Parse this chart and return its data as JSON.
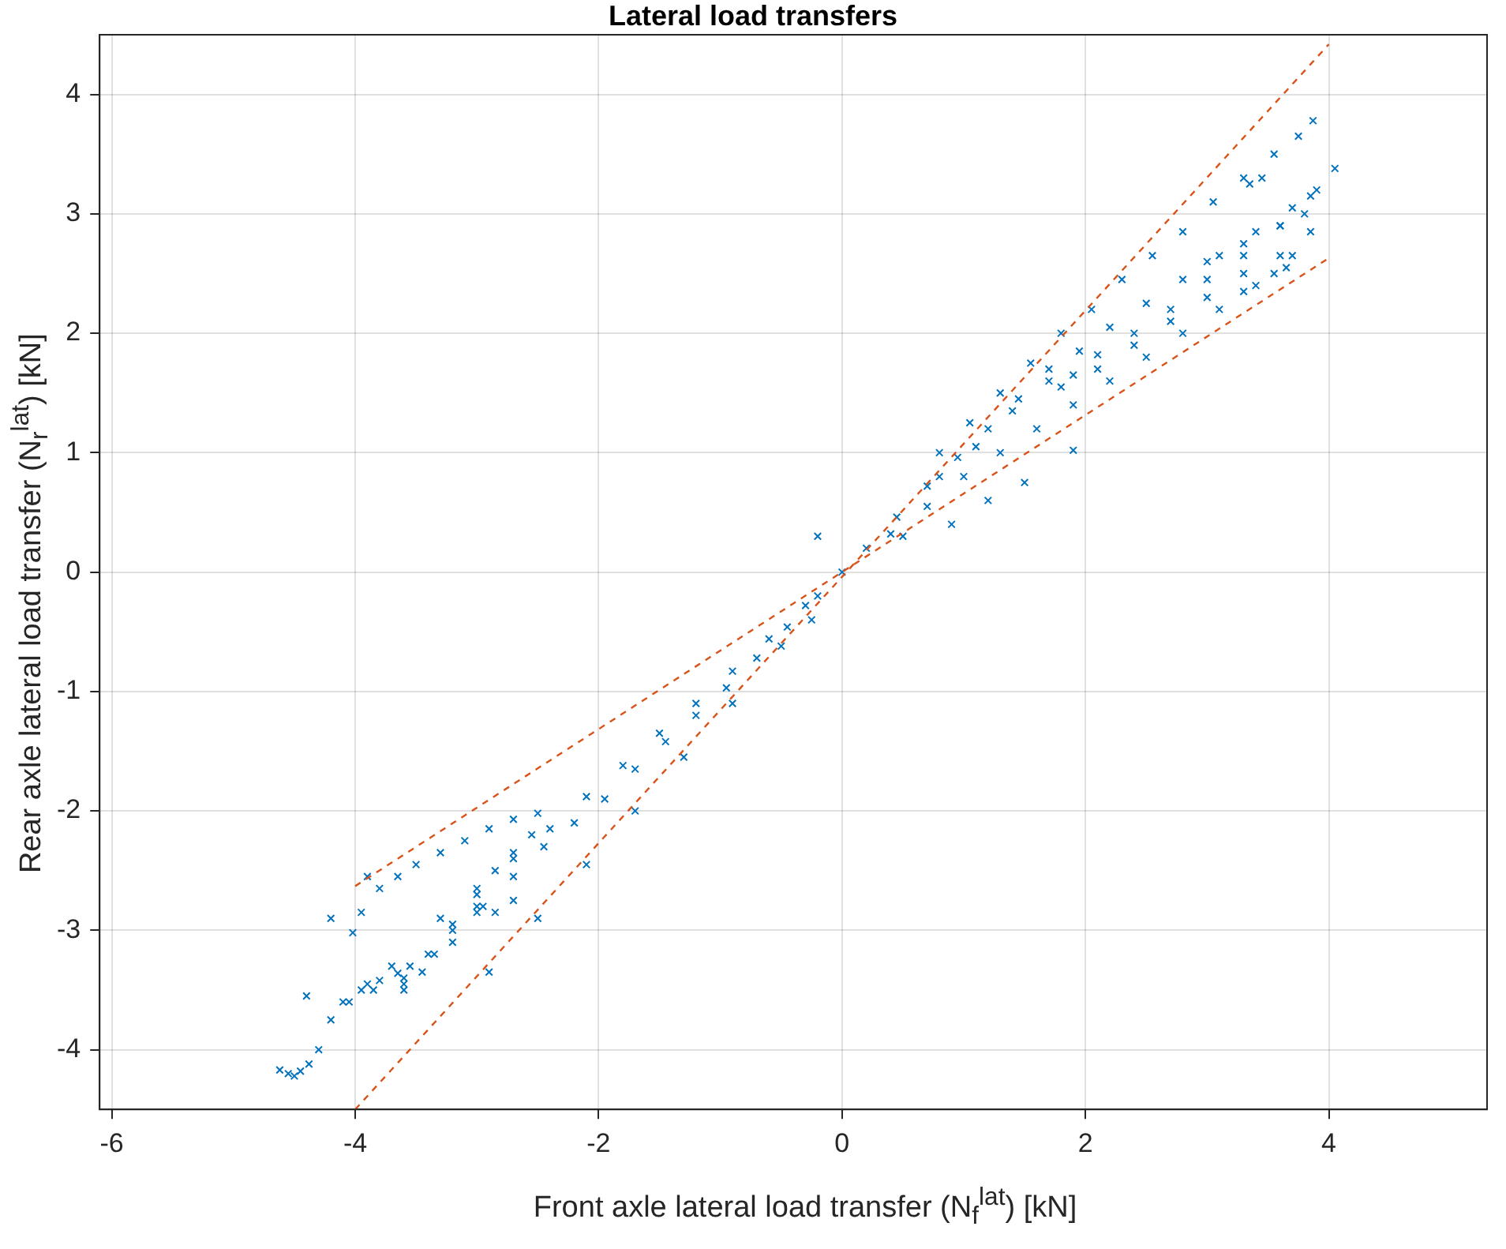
{
  "chart_data": {
    "type": "scatter",
    "title": "Lateral load transfers",
    "xlabel": "Front axle lateral load transfer (N$_{f}$$^{lat}$) [kN]",
    "ylabel": "Rear axle lateral load transfer (N$_{r}$$^{lat}$) [kN]",
    "xlim": [
      -6.1,
      5.3
    ],
    "ylim": [
      -4.5,
      4.5
    ],
    "xticks": [
      -6,
      -4,
      -2,
      0,
      2,
      4
    ],
    "yticks": [
      -4,
      -3,
      -2,
      -1,
      0,
      1,
      2,
      3,
      4
    ],
    "grid": true,
    "legend": false,
    "series": [
      {
        "color": "#0072bd",
        "marker": "cross",
        "x": [
          -4.62,
          -4.55,
          -4.5,
          -4.45,
          -4.38,
          -4.3,
          -4.2,
          -4.1,
          -3.95,
          -3.8,
          -3.65,
          -3.55,
          -3.7,
          -3.9,
          -4.05,
          -3.85,
          -3.6,
          -3.4,
          -3.2,
          -3.0,
          -3.35,
          -3.6,
          -4.02,
          -3.95,
          -3.8,
          -3.65,
          -3.5,
          -3.3,
          -3.1,
          -2.9,
          -2.7,
          -2.5,
          -2.55,
          -2.7,
          -2.85,
          -3.0,
          -3.0,
          -2.85,
          -2.7,
          -3.2,
          -3.6,
          -3.45,
          -3.2,
          -2.95,
          -2.7,
          -2.45,
          -2.2,
          -1.95,
          -1.7,
          -1.45,
          -1.2,
          -0.95,
          -0.7,
          -0.45,
          -0.2,
          0.0,
          0.2,
          0.45,
          0.7,
          0.95,
          1.2,
          1.45,
          1.7,
          -3.3,
          -3.0,
          -2.7,
          -2.4,
          -2.1,
          -1.8,
          -1.5,
          -1.2,
          -0.9,
          -0.6,
          -0.3,
          -2.9,
          -2.5,
          -2.1,
          -1.7,
          -1.3,
          -0.9,
          -0.5,
          -4.4,
          -4.2,
          -3.9,
          -0.2,
          -0.25,
          1.9,
          2.1,
          2.4,
          2.7,
          3.0,
          3.3,
          3.6,
          3.85,
          4.05,
          3.9,
          3.7,
          3.4,
          3.1,
          2.8,
          2.5,
          2.2,
          1.95,
          1.7,
          1.4,
          1.1,
          0.8,
          3.0,
          3.3,
          3.6,
          3.8,
          3.85,
          3.6,
          3.3,
          3.0,
          2.7,
          2.4,
          2.1,
          1.8,
          3.3,
          3.55,
          3.7,
          3.65,
          3.4,
          3.1,
          2.8,
          2.5,
          2.2,
          1.9,
          1.6,
          1.3,
          1.0,
          0.7,
          0.4,
          3.87,
          3.75,
          3.55,
          3.3,
          3.05,
          2.8,
          2.55,
          2.3,
          2.05,
          1.8,
          1.55,
          1.3,
          1.05,
          0.8,
          1.9,
          1.5,
          1.2,
          0.9,
          0.5,
          3.35,
          3.45
        ],
        "values": [
          -4.17,
          -4.2,
          -4.22,
          -4.18,
          -4.12,
          -4.0,
          -3.75,
          -3.6,
          -3.5,
          -3.42,
          -3.36,
          -3.3,
          -3.3,
          -3.45,
          -3.6,
          -3.5,
          -3.45,
          -3.2,
          -3.0,
          -2.8,
          -3.2,
          -3.4,
          -3.02,
          -2.85,
          -2.65,
          -2.55,
          -2.45,
          -2.35,
          -2.25,
          -2.15,
          -2.07,
          -2.02,
          -2.2,
          -2.35,
          -2.5,
          -2.7,
          -2.85,
          -2.85,
          -2.75,
          -2.95,
          -3.5,
          -3.35,
          -3.1,
          -2.8,
          -2.55,
          -2.3,
          -2.1,
          -1.9,
          -1.65,
          -1.42,
          -1.2,
          -0.97,
          -0.72,
          -0.46,
          -0.2,
          0.0,
          0.2,
          0.46,
          0.72,
          0.96,
          1.2,
          1.45,
          1.7,
          -2.9,
          -2.65,
          -2.4,
          -2.15,
          -1.88,
          -1.62,
          -1.35,
          -1.1,
          -0.83,
          -0.56,
          -0.28,
          -3.35,
          -2.9,
          -2.45,
          -2.0,
          -1.55,
          -1.1,
          -0.62,
          -3.55,
          -2.9,
          -2.55,
          0.3,
          -0.4,
          1.65,
          1.82,
          2.0,
          2.2,
          2.45,
          2.65,
          2.9,
          3.15,
          3.38,
          3.2,
          3.05,
          2.85,
          2.65,
          2.45,
          2.25,
          2.05,
          1.85,
          1.6,
          1.35,
          1.05,
          0.8,
          2.6,
          2.75,
          2.9,
          3.0,
          2.85,
          2.65,
          2.5,
          2.3,
          2.1,
          1.9,
          1.7,
          1.55,
          2.35,
          2.5,
          2.65,
          2.55,
          2.4,
          2.2,
          2.0,
          1.8,
          1.6,
          1.4,
          1.2,
          1.0,
          0.8,
          0.55,
          0.32,
          3.78,
          3.65,
          3.5,
          3.3,
          3.1,
          2.85,
          2.65,
          2.45,
          2.2,
          2.0,
          1.75,
          1.5,
          1.25,
          1.0,
          1.02,
          0.75,
          0.6,
          0.4,
          0.3,
          3.25,
          3.3
        ]
      },
      {
        "type": "line",
        "color": "#d95319",
        "line_style": "dashed",
        "marker": "none",
        "x": [
          -4,
          4
        ],
        "values": [
          -4.5,
          4.42
        ]
      },
      {
        "type": "line",
        "color": "#d95319",
        "line_style": "dashed",
        "marker": "none",
        "x": [
          -4,
          4
        ],
        "values": [
          -2.63,
          2.63
        ]
      }
    ]
  }
}
